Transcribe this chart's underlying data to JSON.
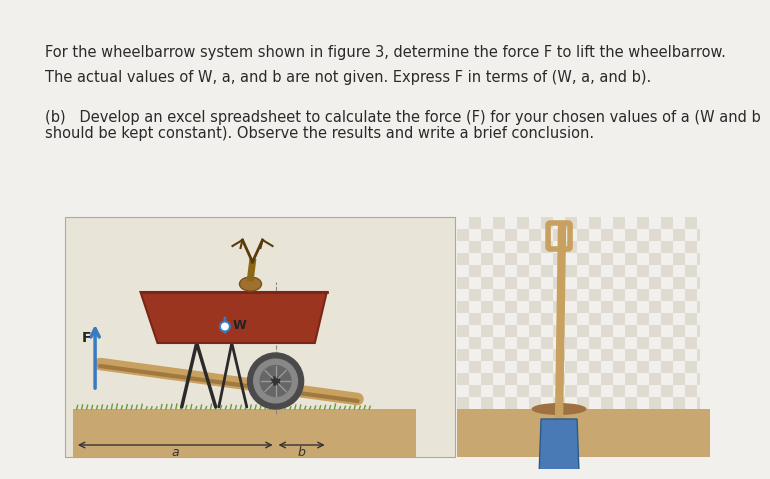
{
  "fig_bg": "#f2f0ed",
  "panel_bg": "#e8e4d8",
  "text_color": "#2a2a2a",
  "line1": "For the wheelbarrow system shown in figure 3, determine the force F to lift the wheelbarrow.",
  "line2": "The actual values of W, a, and b are not given. Express F in terms of (W, a, and b).",
  "line3": "(b)   Develop an excel spreadsheet to calculate the force (F) for your chosen values of a (W and b",
  "line4": "should be kept constant). Observe the results and write a brief conclusion.",
  "font_size": 10.5,
  "handle_color": "#c8a060",
  "tray_color": "#9b3520",
  "tray_dark": "#7a2518",
  "wheel_outer": "#4a4a4a",
  "wheel_mid": "#888888",
  "wheel_light": "#bbbbbb",
  "ground_color": "#c8a870",
  "grass_color": "#6a9a3a",
  "leg_color": "#2a2a2a",
  "shovel_handle": "#c8a060",
  "shovel_blade": "#4a7ab5",
  "f_arrow_color": "#3a7abf",
  "w_arrow_color": "#3a7abf",
  "dim_color": "#333333"
}
